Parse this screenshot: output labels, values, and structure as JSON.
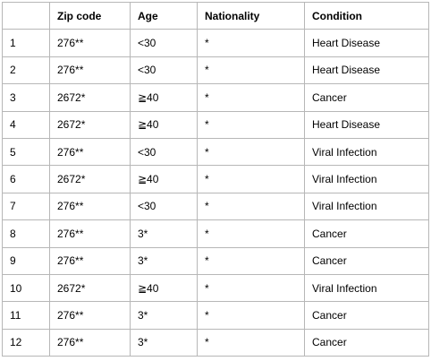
{
  "table": {
    "headers": [
      "",
      "Zip code",
      "Age",
      "Nationality",
      "Condition"
    ],
    "rows": [
      [
        "1",
        "276**",
        "<30",
        "*",
        "Heart Disease"
      ],
      [
        "2",
        "276**",
        "<30",
        "*",
        "Heart Disease"
      ],
      [
        "3",
        "2672*",
        "≧40",
        "*",
        "Cancer"
      ],
      [
        "4",
        "2672*",
        "≧40",
        "*",
        "Heart Disease"
      ],
      [
        "5",
        "276**",
        "<30",
        "*",
        "Viral Infection"
      ],
      [
        "6",
        "2672*",
        "≧40",
        "*",
        "Viral Infection"
      ],
      [
        "7",
        "276**",
        "<30",
        "*",
        "Viral Infection"
      ],
      [
        "8",
        "276**",
        "3*",
        "*",
        "Cancer"
      ],
      [
        "9",
        "276**",
        "3*",
        "*",
        "Cancer"
      ],
      [
        "10",
        "2672*",
        "≧40",
        "*",
        "Viral Infection"
      ],
      [
        "11",
        "276**",
        "3*",
        "*",
        "Cancer"
      ],
      [
        "12",
        "276**",
        "3*",
        "*",
        "Cancer"
      ]
    ]
  }
}
